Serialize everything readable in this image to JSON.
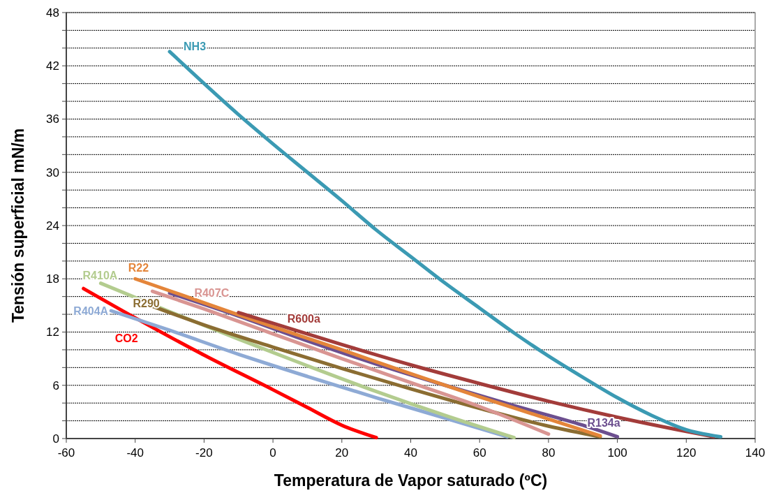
{
  "chart_data": {
    "type": "line",
    "xlabel": "Temperatura de Vapor saturado (ºC)",
    "ylabel": "Tensión superficial mN/m",
    "xlim": [
      -60,
      140
    ],
    "xticks": [
      -60,
      -40,
      -20,
      0,
      20,
      40,
      60,
      80,
      100,
      120,
      140
    ],
    "ylim": [
      0,
      48
    ],
    "yticks": [
      0,
      {
        "value": 2,
        "label": null
      },
      {
        "value": 4,
        "label": null
      },
      6,
      {
        "value": 8,
        "label": null
      },
      {
        "value": 10,
        "label": null
      },
      12,
      {
        "value": 14,
        "label": null
      },
      {
        "value": 16,
        "label": null
      },
      18,
      {
        "value": 20,
        "label": null
      },
      {
        "value": 22,
        "label": null
      },
      24,
      {
        "value": 26,
        "label": null
      },
      {
        "value": 28,
        "label": null
      },
      30,
      {
        "value": 32,
        "label": null
      },
      {
        "value": 34,
        "label": null
      },
      36,
      {
        "value": 38,
        "label": null
      },
      {
        "value": 40,
        "label": null
      },
      42,
      {
        "value": 44,
        "label": null
      },
      {
        "value": 46,
        "label": null
      },
      48
    ],
    "grid": "y",
    "marker": "none",
    "line_style": "solid",
    "series": [
      {
        "name": "CO2",
        "color": "#ff0000",
        "x": [
          -55,
          -40,
          -20,
          0,
          10,
          20,
          30
        ],
        "values": [
          16.9,
          13.6,
          9.4,
          5.5,
          3.5,
          1.5,
          0.1
        ]
      },
      {
        "name": "R404A",
        "color": "#8eaad5",
        "x": [
          -47,
          -30,
          -10,
          10,
          30,
          50,
          68
        ],
        "values": [
          14.4,
          12.2,
          9.5,
          7,
          4.6,
          2.3,
          0.2
        ]
      },
      {
        "name": "R410A",
        "color": "#b3cc8f",
        "x": [
          -50,
          -30,
          -10,
          10,
          30,
          50,
          70
        ],
        "values": [
          17.5,
          14.3,
          11.2,
          8.2,
          5.3,
          2.6,
          0.1
        ]
      },
      {
        "name": "R290",
        "color": "#8b6d32",
        "x": [
          -37,
          -20,
          0,
          20,
          40,
          60,
          80,
          95
        ],
        "values": [
          15.2,
          12.8,
          10.3,
          7.9,
          5.6,
          3.4,
          1.4,
          0.2
        ]
      },
      {
        "name": "R407C",
        "color": "#d99592",
        "x": [
          -35,
          -20,
          0,
          20,
          40,
          60,
          80
        ],
        "values": [
          16.6,
          14.6,
          11.8,
          9,
          6.3,
          3.6,
          0.5
        ]
      },
      {
        "name": "R134a",
        "color": "#6c4f8f",
        "x": [
          -30,
          -10,
          10,
          30,
          50,
          70,
          90,
          100
        ],
        "values": [
          16.4,
          13.8,
          11,
          8.4,
          6,
          3.7,
          1.5,
          0.2
        ]
      },
      {
        "name": "R22",
        "color": "#e4853a",
        "x": [
          -40,
          -20,
          0,
          20,
          40,
          60,
          80,
          95
        ],
        "values": [
          18,
          15.3,
          12.6,
          10,
          7.3,
          4.7,
          2.2,
          0.3
        ]
      },
      {
        "name": "R600a",
        "color": "#a33c3a",
        "x": [
          -10,
          0,
          20,
          40,
          60,
          80,
          100,
          120,
          128
        ],
        "values": [
          14.2,
          13,
          10.6,
          8.3,
          6.2,
          4.2,
          2.4,
          0.8,
          0.2
        ]
      },
      {
        "name": "NH3",
        "color": "#3b9ab3",
        "x": [
          -30,
          -20,
          -10,
          0,
          10,
          20,
          30,
          40,
          50,
          60,
          70,
          80,
          90,
          100,
          110,
          120,
          130
        ],
        "values": [
          43.6,
          40,
          36.5,
          33.2,
          30,
          26.8,
          23.5,
          20.5,
          17.5,
          14.7,
          11.9,
          9.3,
          6.9,
          4.6,
          2.6,
          1,
          0.2
        ]
      }
    ]
  }
}
